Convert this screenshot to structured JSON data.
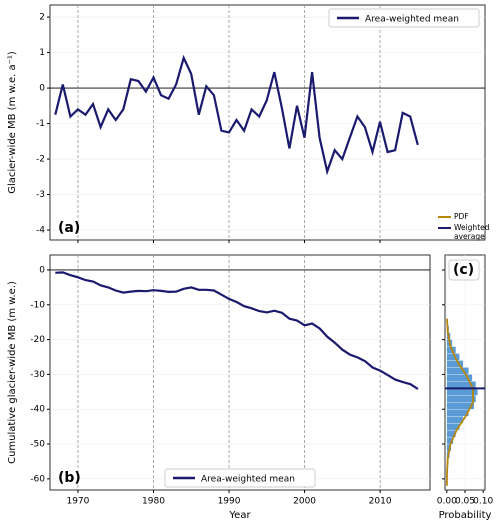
{
  "chart_data": [
    {
      "type": "line",
      "y_label": "Glacier-wide MB (m w.e. a⁻¹)",
      "panel_label": "(a)",
      "x": [
        1967,
        1968,
        1969,
        1970,
        1971,
        1972,
        1973,
        1974,
        1975,
        1976,
        1977,
        1978,
        1979,
        1980,
        1981,
        1982,
        1983,
        1984,
        1985,
        1986,
        1987,
        1988,
        1989,
        1990,
        1991,
        1992,
        1993,
        1994,
        1995,
        1996,
        1997,
        1998,
        1999,
        2000,
        2001,
        2002,
        2003,
        2004,
        2005,
        2006,
        2007,
        2008,
        2009,
        2010,
        2011,
        2012,
        2013,
        2014,
        2015
      ],
      "series": [
        {
          "name": "Area-weighted mean",
          "color": "#1a1a6e",
          "values": [
            -0.75,
            0.1,
            -0.8,
            -0.6,
            -0.75,
            -0.45,
            -1.1,
            -0.6,
            -0.9,
            -0.6,
            0.25,
            0.2,
            -0.1,
            0.3,
            -0.2,
            -0.3,
            0.1,
            0.85,
            0.4,
            -0.75,
            0.05,
            -0.2,
            -1.2,
            -1.25,
            -0.9,
            -1.2,
            -0.6,
            -0.8,
            -0.35,
            0.45,
            -0.55,
            -1.7,
            -0.5,
            -1.4,
            0.45,
            -1.4,
            -2.35,
            -1.75,
            -2.0,
            -1.4,
            -0.8,
            -1.1,
            -1.8,
            -0.95,
            -1.8,
            -1.75,
            -0.7,
            -0.8,
            -1.6
          ]
        }
      ],
      "xlim": [
        1966.3,
        2023.9
      ],
      "ylim": [
        -4.28,
        2.34
      ],
      "xticks": [
        1970,
        1980,
        1990,
        2000,
        2010
      ],
      "yticks": [
        -4,
        -3,
        -2,
        -1,
        0,
        1,
        2
      ],
      "hline": 0,
      "grid": true,
      "legend": "upper right"
    },
    {
      "type": "line",
      "x_label": "Year",
      "y_label": "Cumulative glacier-wide MB (m w.e.)",
      "panel_label": "(b)",
      "x": [
        1967,
        1968,
        1969,
        1970,
        1971,
        1972,
        1973,
        1974,
        1975,
        1976,
        1977,
        1978,
        1979,
        1980,
        1981,
        1982,
        1983,
        1984,
        1985,
        1986,
        1987,
        1988,
        1989,
        1990,
        1991,
        1992,
        1993,
        1994,
        1995,
        1996,
        1997,
        1998,
        1999,
        2000,
        2001,
        2002,
        2003,
        2004,
        2005,
        2006,
        2007,
        2008,
        2009,
        2010,
        2011,
        2012,
        2013,
        2014,
        2015
      ],
      "series": [
        {
          "name": "Area-weighted mean",
          "color": "#1a1a6e",
          "values": [
            -0.8,
            -0.7,
            -1.5,
            -2.1,
            -2.9,
            -3.3,
            -4.4,
            -5.0,
            -5.9,
            -6.5,
            -6.2,
            -6.0,
            -6.1,
            -5.8,
            -6.0,
            -6.3,
            -6.2,
            -5.4,
            -5.0,
            -5.7,
            -5.7,
            -5.9,
            -7.1,
            -8.3,
            -9.2,
            -10.4,
            -11.0,
            -11.8,
            -12.2,
            -11.7,
            -12.3,
            -14.0,
            -14.5,
            -15.9,
            -15.4,
            -16.8,
            -19.2,
            -20.9,
            -22.9,
            -24.3,
            -25.1,
            -26.2,
            -28.0,
            -28.9,
            -30.2,
            -31.5,
            -32.2,
            -32.8,
            -34.2
          ]
        }
      ],
      "xlim": [
        1966.3,
        2016.6
      ],
      "ylim": [
        -63.2,
        4.3
      ],
      "xticks": [
        1970,
        1980,
        1990,
        2000,
        2010
      ],
      "yticks": [
        -60,
        -50,
        -40,
        -30,
        -20,
        -10,
        0
      ],
      "hline": 0,
      "grid": true,
      "legend": "lower center"
    },
    {
      "type": "histogram",
      "x_label": "Probability",
      "panel_label": "(c)",
      "orientation": "horizontal",
      "bins": [
        -60,
        -58,
        -56,
        -54,
        -52,
        -50,
        -48,
        -46,
        -44,
        -42,
        -40,
        -38,
        -36,
        -34,
        -32,
        -30,
        -28,
        -26,
        -24,
        -22,
        -20,
        -18,
        -16,
        -14
      ],
      "values": [
        0.003,
        0.004,
        0.005,
        0.008,
        0.012,
        0.018,
        0.025,
        0.035,
        0.045,
        0.06,
        0.075,
        0.08,
        0.085,
        0.08,
        0.07,
        0.06,
        0.045,
        0.035,
        0.025,
        0.015,
        0.01,
        0.006,
        0.003
      ],
      "color": "#5b9bd5",
      "pdf": {
        "name": "PDF",
        "color": "#b8860b",
        "y": [
          -62,
          -58,
          -54,
          -50,
          -46,
          -42,
          -38,
          -34,
          -30,
          -26,
          -22,
          -18,
          -14
        ],
        "values": [
          0.0001,
          0.0006,
          0.0026,
          0.0101,
          0.027,
          0.052,
          0.072,
          0.072,
          0.052,
          0.027,
          0.0101,
          0.0026,
          0.0006
        ]
      },
      "weighted_average": {
        "name": "Weighted average",
        "color": "#1a1a6e",
        "value": -34
      },
      "xlim": [
        -0.005,
        0.105
      ],
      "ylim": [
        -63.2,
        4.3
      ],
      "xticks": [
        {
          "value": 0,
          "label": "0.00"
        },
        {
          "value": 0.05,
          "label": "0.05"
        },
        {
          "value": 0.1,
          "label": "0.10"
        }
      ],
      "yticks": [
        -60,
        -50,
        -40,
        -30,
        -20,
        -10,
        0
      ],
      "grid": true
    }
  ]
}
